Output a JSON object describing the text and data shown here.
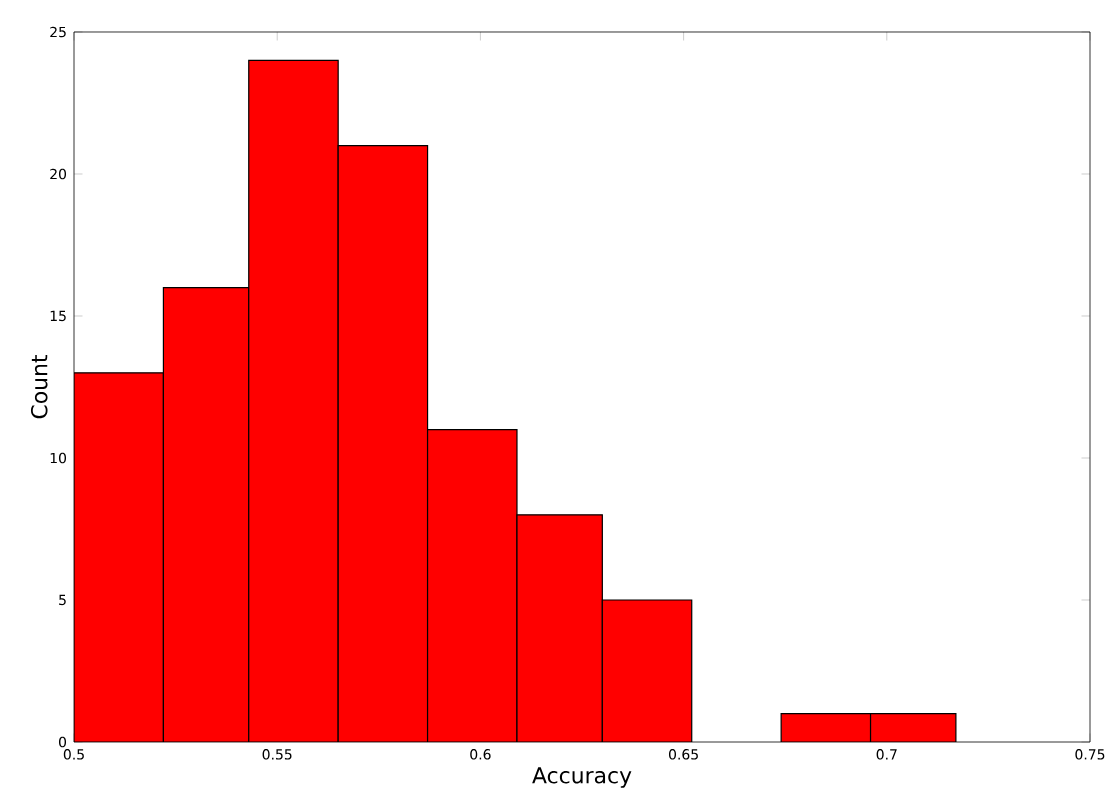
{
  "chart_data": {
    "type": "histogram",
    "xlabel": "Accuracy",
    "ylabel": "Count",
    "bins": [
      0.5,
      0.522,
      0.543,
      0.565,
      0.587,
      0.609,
      0.63,
      0.652,
      0.674,
      0.696,
      0.717
    ],
    "values": [
      13,
      16,
      24,
      21,
      11,
      8,
      5,
      0,
      1,
      1
    ],
    "color": "#ff0000",
    "xlim": [
      0.5,
      0.75
    ],
    "ylim": [
      0,
      25
    ],
    "xticks": [
      0.5,
      0.55,
      0.6,
      0.65,
      0.7,
      0.75
    ],
    "yticks": [
      0,
      5,
      10,
      15,
      20,
      25
    ],
    "grid": false
  }
}
